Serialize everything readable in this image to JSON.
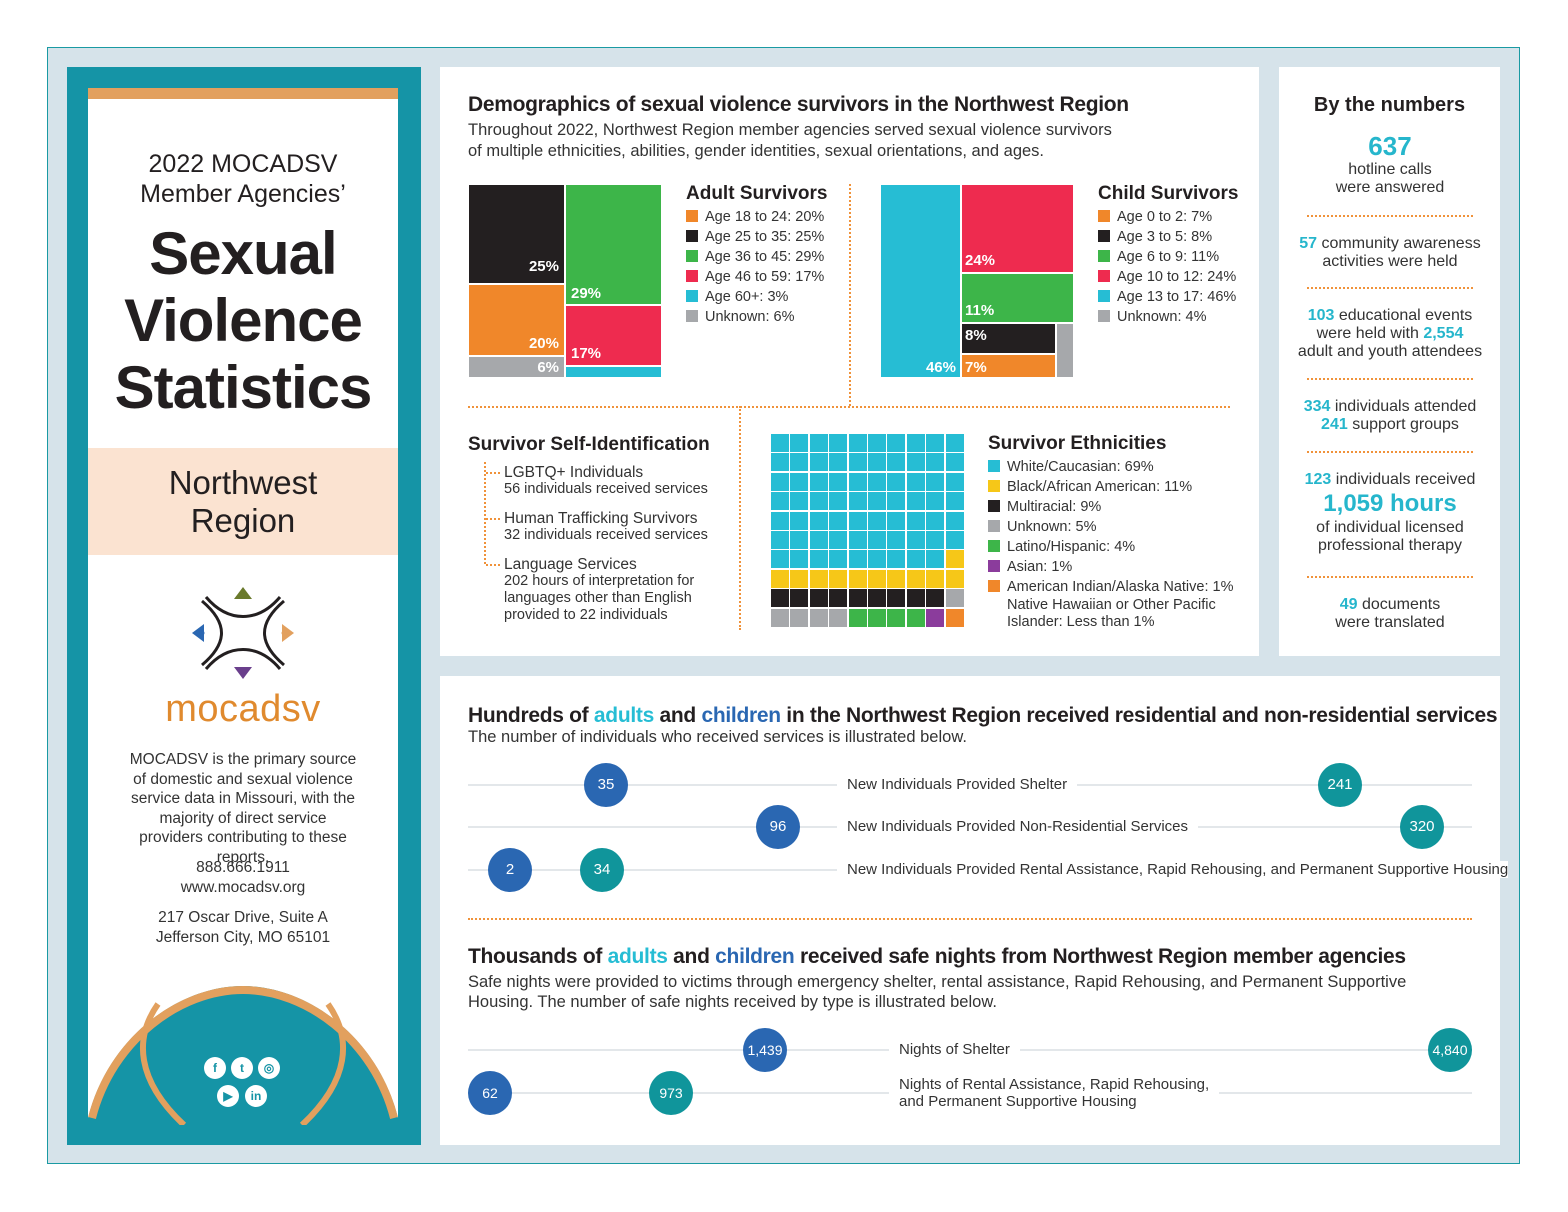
{
  "sidebar": {
    "year_line": "2022 MOCADSV",
    "agencies_line": "Member Agencies’",
    "title_lines": [
      "Sexual",
      "Violence",
      "Statistics"
    ],
    "region_lines": [
      "Northwest",
      "Region"
    ],
    "logo_text": "mocadsv",
    "description": "MOCADSV is the primary source of domestic and sexual violence service data in Missouri, with the majority of direct service providers contributing to these reports.",
    "phone": "888.666.1911",
    "website": "www.mocadsv.org",
    "address_line1": "217 Oscar Drive, Suite A",
    "address_line2": "Jefferson City, MO 65101",
    "social_icons": [
      "facebook-icon",
      "twitter-icon",
      "instagram-icon",
      "youtube-icon",
      "linkedin-icon"
    ]
  },
  "demographics": {
    "title": "Demographics of sexual violence survivors in the Northwest Region",
    "subtitle_line1": "Throughout 2022, Northwest Region member agencies served sexual violence survivors",
    "subtitle_line2": "of multiple ethnicities, abilities, gender identities, sexual orientations, and ages."
  },
  "colors": {
    "orange": "#f0872a",
    "black": "#231f20",
    "green": "#3db549",
    "red": "#ee2b4f",
    "cyan": "#26bdd4",
    "gray": "#a6a8ab",
    "yellow": "#f6c718",
    "purple": "#8b3c9c",
    "teal": "#10959b",
    "blue": "#2a67b2",
    "peach": "#fbe3d1"
  },
  "chart_data": [
    {
      "type": "treemap",
      "title": "Adult Survivors",
      "legend": [
        "Age 18 to 24: 20%",
        "Age 25 to 35: 25%",
        "Age 36 to 45: 29%",
        "Age 46 to 59: 17%",
        "Age 60+: 3%",
        "Unknown: 6%"
      ],
      "categories": [
        "Age 18 to 24",
        "Age 25 to 35",
        "Age 36 to 45",
        "Age 46 to 59",
        "Age 60+",
        "Unknown"
      ],
      "values": [
        20,
        25,
        29,
        17,
        3,
        6
      ],
      "labels": [
        "20%",
        "25%",
        "29%",
        "17%",
        "",
        "6%"
      ]
    },
    {
      "type": "treemap",
      "title": "Child Survivors",
      "legend": [
        "Age 0 to 2: 7%",
        "Age 3 to 5: 8%",
        "Age 6 to 9: 11%",
        "Age 10 to 12: 24%",
        "Age 13 to 17: 46%",
        "Unknown: 4%"
      ],
      "categories": [
        "Age 0 to 2",
        "Age 3 to 5",
        "Age 6 to 9",
        "Age 10 to 12",
        "Age 13 to 17",
        "Unknown"
      ],
      "values": [
        7,
        8,
        11,
        24,
        46,
        4
      ],
      "labels": [
        "7%",
        "8%",
        "11%",
        "24%",
        "46%",
        ""
      ]
    },
    {
      "type": "waffle",
      "title": "Survivor Ethnicities",
      "legend": [
        "White/Caucasian: 69%",
        "Black/African American: 11%",
        "Multiracial: 9%",
        "Unknown: 5%",
        "Latino/Hispanic: 4%",
        "Asian: 1%",
        "American Indian/Alaska Native: 1%"
      ],
      "legend_extra_lines": [
        "Native Hawaiian or Other Pacific",
        "Islander: Less than 1%"
      ],
      "values": [
        69,
        11,
        9,
        5,
        4,
        1,
        1
      ]
    },
    {
      "type": "dot",
      "title_parts": [
        "Hundreds of ",
        "adults",
        " and ",
        "children",
        " in the Northwest Region received residential and non-residential services"
      ],
      "subtitle": "The number of individuals who received services is illustrated below.",
      "rows": [
        {
          "label": "New Individuals Provided Shelter",
          "adults": 35,
          "children": 241
        },
        {
          "label": "New Individuals Provided Non-Residential Services",
          "adults": 96,
          "children": 320
        },
        {
          "label": "New Individuals Provided Rental Assistance, Rapid Rehousing, and Permanent Supportive Housing",
          "adults": 2,
          "children": 34
        }
      ]
    },
    {
      "type": "dot",
      "title_parts": [
        "Thousands of ",
        "adults",
        " and ",
        "children",
        " received safe nights from Northwest Region member agencies"
      ],
      "subtitle_line1": "Safe nights were provided to victims through emergency shelter, rental assistance, Rapid Rehousing, and Permanent Supportive",
      "subtitle_line2": "Housing. The number of safe nights received by type is illustrated below.",
      "rows": [
        {
          "label": "Nights of Shelter",
          "adults": "1,439",
          "children": "4,840"
        },
        {
          "label_line1": "Nights of Rental Assistance, Rapid Rehousing,",
          "label_line2": "and Permanent Supportive Housing",
          "adults": "62",
          "children": "973"
        }
      ]
    }
  ],
  "self_id": {
    "title": "Survivor Self-Identification",
    "items": [
      {
        "name": "LGBTQ+ Individuals",
        "detail": [
          "56 individuals received services"
        ]
      },
      {
        "name": "Human Trafficking Survivors",
        "detail": [
          "32 individuals received services"
        ]
      },
      {
        "name": "Language Services",
        "detail": [
          "202 hours of interpretation for",
          "languages other than English",
          "provided to 22 individuals"
        ]
      }
    ]
  },
  "numbers": {
    "title": "By the numbers",
    "s1_num": "637",
    "s1_l1": "hotline calls",
    "s1_l2": "were answered",
    "s2_num": "57",
    "s2_l1": " community awareness",
    "s2_l2": "activities were held",
    "s3_num": "103",
    "s3_l1": " educational events",
    "s3_l2a": "were held with ",
    "s3_num2": "2,554",
    "s3_l3": "adult and youth attendees",
    "s4_num": "334",
    "s4_l1": " individuals attended",
    "s4_num2": "241",
    "s4_l2": " support groups",
    "s5_num": "123",
    "s5_l1": " individuals received",
    "s5_big": "1,059 hours",
    "s5_l2": "of individual licensed",
    "s5_l3": "professional therapy",
    "s6_num": "49",
    "s6_l1": " documents",
    "s6_l2": "were translated"
  }
}
